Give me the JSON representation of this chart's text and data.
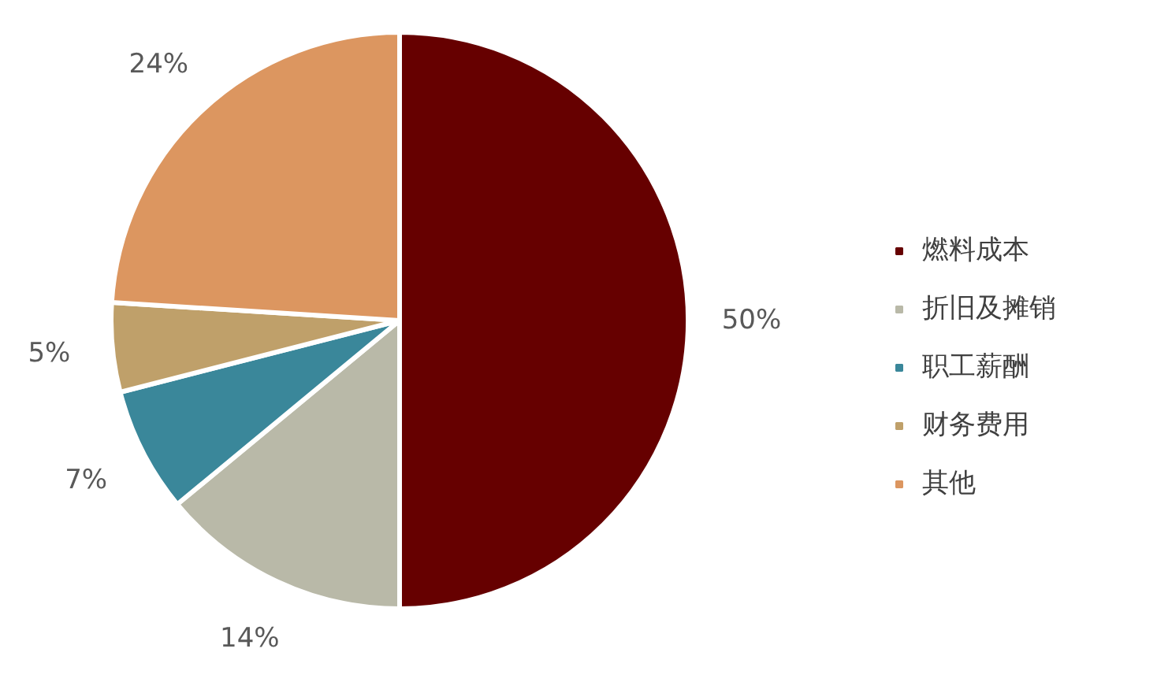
{
  "chart_data": {
    "type": "pie",
    "categories": [
      "燃料成本",
      "折旧及摊销",
      "职工薪酬",
      "财务费用",
      "其他"
    ],
    "values": [
      50,
      14,
      7,
      5,
      24
    ],
    "colors": [
      "#660000",
      "#b9b9a8",
      "#3a879a",
      "#bfa06a",
      "#dc9660"
    ],
    "value_labels": [
      "50%",
      "14%",
      "7%",
      "5%",
      "24%"
    ],
    "legend": "right"
  }
}
